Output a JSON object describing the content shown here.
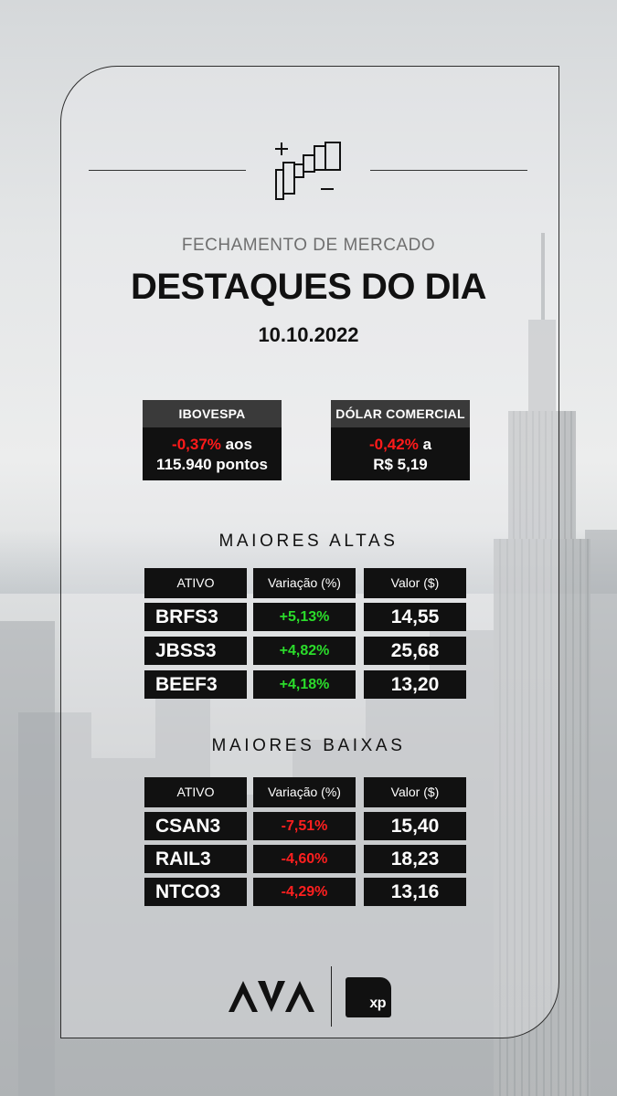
{
  "header": {
    "subtitle": "FECHAMENTO DE MERCADO",
    "title": "DESTAQUES DO DIA",
    "date": "10.10.2022",
    "icon": "chart-plus-minus-icon"
  },
  "indices": [
    {
      "label": "IBOVESPA",
      "change": "-0,37%",
      "suffix": " aos",
      "detail": "115.940 pontos"
    },
    {
      "label": "DÓLAR COMERCIAL",
      "change": "-0,42%",
      "suffix": " a",
      "detail": "R$ 5,19"
    }
  ],
  "table_headers": {
    "asset": "ATIVO",
    "change": "Variação (%)",
    "value": "Valor ($)"
  },
  "gainers": {
    "title": "MAIORES ALTAS",
    "rows": [
      {
        "ticker": "BRFS3",
        "change": "+5,13%",
        "value": "14,55"
      },
      {
        "ticker": "JBSS3",
        "change": "+4,82%",
        "value": "25,68"
      },
      {
        "ticker": "BEEF3",
        "change": "+4,18%",
        "value": "13,20"
      }
    ]
  },
  "losers": {
    "title": "MAIORES BAIXAS",
    "rows": [
      {
        "ticker": "CSAN3",
        "change": "-7,51%",
        "value": "15,40"
      },
      {
        "ticker": "RAIL3",
        "change": "-4,60%",
        "value": "18,23"
      },
      {
        "ticker": "NTCO3",
        "change": "-4,29%",
        "value": "13,16"
      }
    ]
  },
  "logos": {
    "left": "m-logo",
    "right_text": "xp"
  },
  "colors": {
    "positive": "#2bdc2b",
    "negative": "#ff1a1a",
    "panel": "#111111",
    "panel_header": "#3a3a3a"
  }
}
